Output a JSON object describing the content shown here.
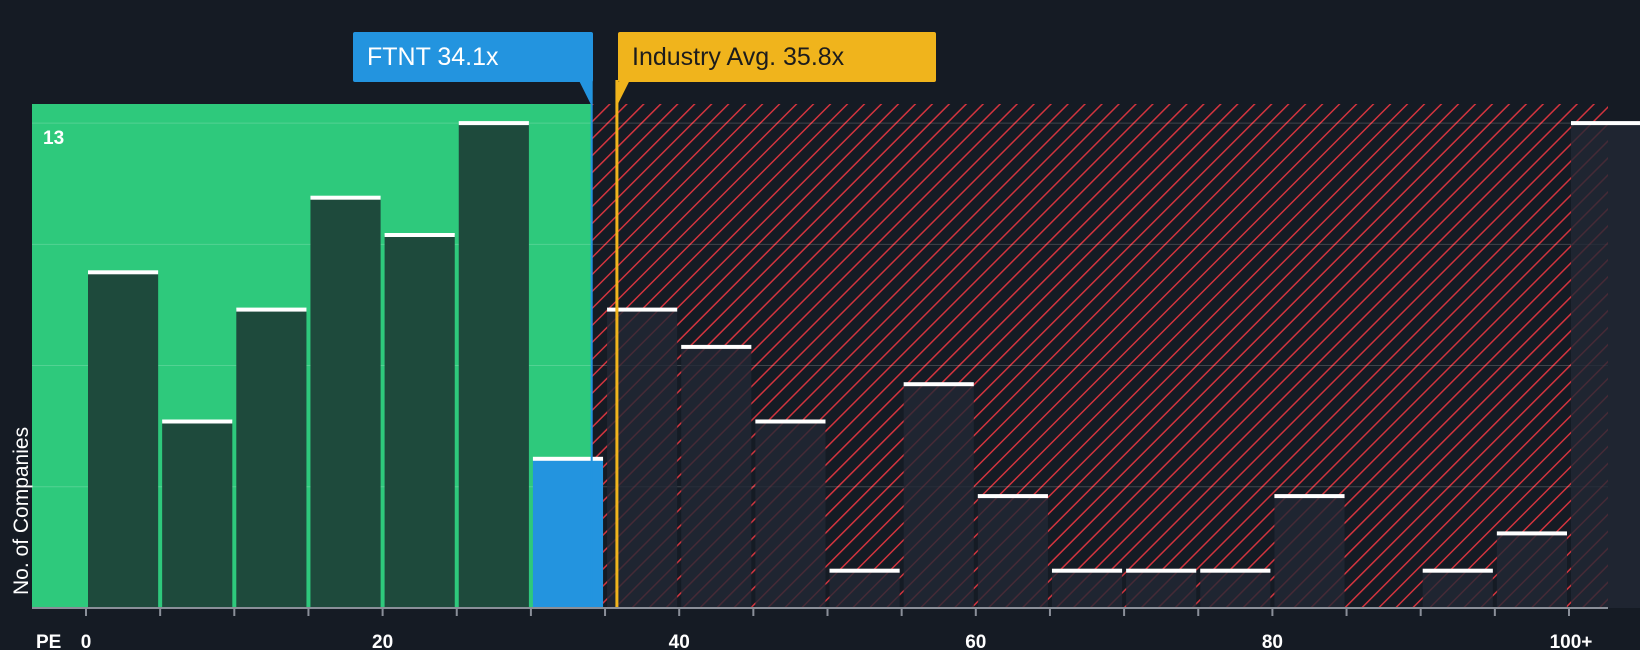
{
  "colors": {
    "background": "#151b24",
    "fair_zone": "#2ec97c",
    "bar_dark": "#1e4a3c",
    "bar_company": "#2394df",
    "industry": "#f0b41c",
    "hatch": "#d1343e",
    "bar_cap": "#ffffff"
  },
  "company_label": "FTNT 34.1x",
  "industry_label": "Industry Avg. 35.8x",
  "chart_data": {
    "type": "bar",
    "title": "",
    "xlabel": "PE",
    "ylabel": "No. of Companies",
    "x_ticks": [
      "0",
      "20",
      "40",
      "60",
      "80",
      "100+"
    ],
    "y_ticks": [
      "13"
    ],
    "ylim": [
      0,
      13.5
    ],
    "xlim": [
      -3.5,
      102.5
    ],
    "bin_width": 5,
    "company_pe": 34.1,
    "industry_pe": 35.8,
    "company_bin_index": 6,
    "bins": [
      "0-5",
      "5-10",
      "10-15",
      "15-20",
      "20-25",
      "25-30",
      "30-35",
      "35-40",
      "40-45",
      "45-50",
      "50-55",
      "55-60",
      "60-65",
      "65-70",
      "70-75",
      "75-80",
      "80-85",
      "85-90",
      "90-95",
      "95-100",
      "100+"
    ],
    "values": [
      9,
      5,
      8,
      11,
      10,
      13,
      4,
      8,
      7,
      5,
      1,
      6,
      3,
      1,
      1,
      1,
      3,
      0,
      1,
      2,
      13
    ]
  }
}
